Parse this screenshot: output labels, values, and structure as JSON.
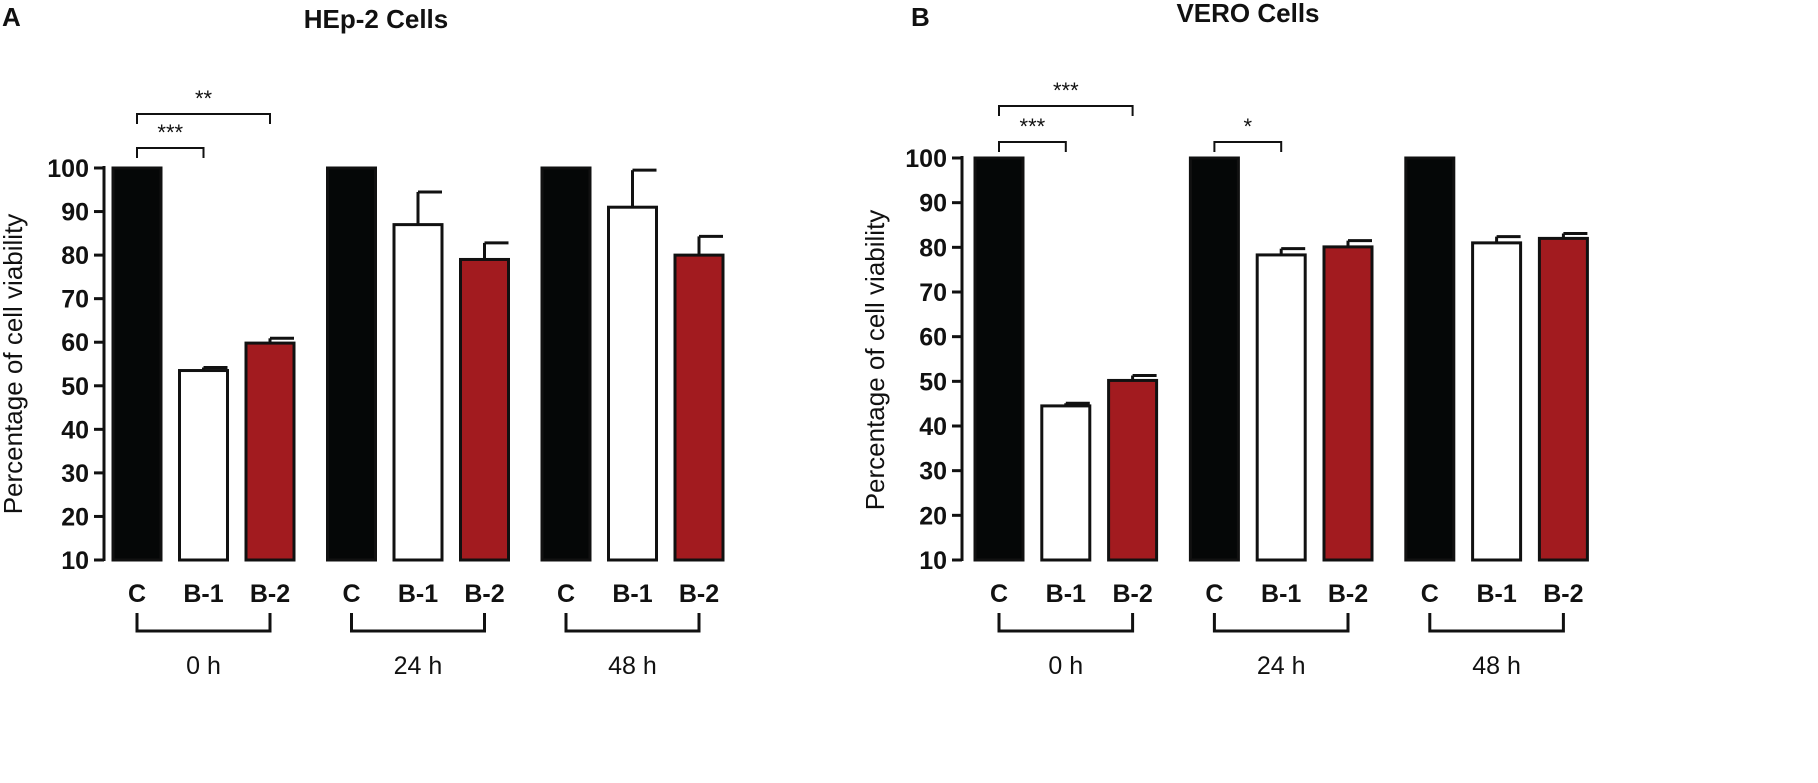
{
  "chart_data": [
    {
      "type": "bar",
      "panel": "A",
      "title": "HEp-2 Cells",
      "ylabel": "Percentage of cell viability",
      "xlabel": "",
      "ylim": [
        10,
        100
      ],
      "yticks": [
        10,
        20,
        30,
        40,
        50,
        60,
        70,
        80,
        90,
        100
      ],
      "categories": [
        "C",
        "B-1",
        "B-2",
        "C",
        "B-1",
        "B-2",
        "C",
        "B-1",
        "B-2"
      ],
      "groups": [
        {
          "label": "0 h",
          "start": 0,
          "end": 2
        },
        {
          "label": "24 h",
          "start": 3,
          "end": 5
        },
        {
          "label": "48 h",
          "start": 6,
          "end": 8
        }
      ],
      "values": [
        100,
        53.5,
        59.8,
        100,
        87,
        79,
        100,
        91,
        80
      ],
      "errors": [
        0,
        0.7,
        1.1,
        0,
        7.5,
        3.8,
        0,
        8.5,
        4.3
      ],
      "colors": [
        "#050707",
        "#ffffff",
        "#a21b1f",
        "#050707",
        "#ffffff",
        "#a21b1f",
        "#050707",
        "#ffffff",
        "#a21b1f"
      ],
      "significance": [
        {
          "from": 0,
          "to": 1,
          "label": "***"
        },
        {
          "from": 0,
          "to": 2,
          "label": "**"
        }
      ]
    },
    {
      "type": "bar",
      "panel": "B",
      "title": "VERO Cells",
      "ylabel": "Percentage of cell viability",
      "xlabel": "",
      "ylim": [
        10,
        100
      ],
      "yticks": [
        10,
        20,
        30,
        40,
        50,
        60,
        70,
        80,
        90,
        100
      ],
      "categories": [
        "C",
        "B-1",
        "B-2",
        "C",
        "B-1",
        "B-2",
        "C",
        "B-1",
        "B-2"
      ],
      "groups": [
        {
          "label": "0 h",
          "start": 0,
          "end": 2
        },
        {
          "label": "24 h",
          "start": 3,
          "end": 5
        },
        {
          "label": "48 h",
          "start": 6,
          "end": 8
        }
      ],
      "values": [
        100,
        44.5,
        50.2,
        100,
        78.3,
        80.1,
        100,
        81,
        82
      ],
      "errors": [
        0,
        0.6,
        1.1,
        0,
        1.4,
        1.4,
        0,
        1.4,
        1.1
      ],
      "colors": [
        "#050707",
        "#ffffff",
        "#a21b1f",
        "#050707",
        "#ffffff",
        "#a21b1f",
        "#050707",
        "#ffffff",
        "#a21b1f"
      ],
      "significance": [
        {
          "from": 0,
          "to": 1,
          "label": "***"
        },
        {
          "from": 0,
          "to": 2,
          "label": "***"
        },
        {
          "from": 3,
          "to": 4,
          "label": "*"
        }
      ]
    }
  ]
}
